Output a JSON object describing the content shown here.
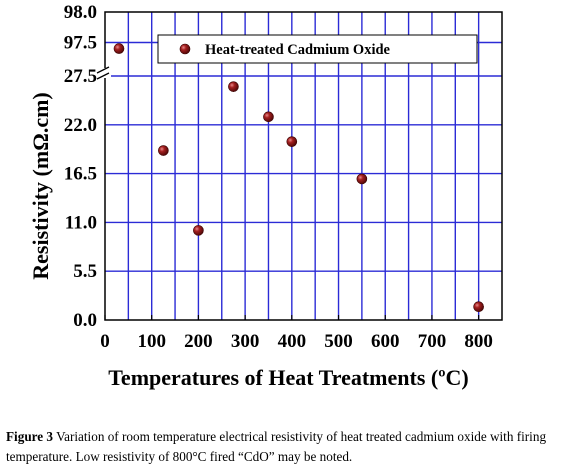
{
  "chart_data": {
    "type": "scatter",
    "xlabel": "Temperatures of Heat Treatments (ºC)",
    "ylabel": "Resistivity (mΩ.cm)",
    "xlim": [
      0,
      850
    ],
    "xticks": [
      "0",
      "100",
      "200",
      "300",
      "400",
      "500",
      "600",
      "700",
      "800"
    ],
    "yticks_lower": [
      "0.0",
      "5.5",
      "11.0",
      "16.5",
      "22.0",
      "27.5"
    ],
    "yticks_upper": [
      "97.5",
      "98.0"
    ],
    "ylim_lower": [
      0,
      27.5
    ],
    "ylim_upper": [
      97.0,
      98.0
    ],
    "axis_break": true,
    "grid": true,
    "legend_position": "top-right",
    "series": [
      {
        "name": "Heat-treated Cadmium Oxide",
        "color": "#8b1a1a",
        "points": [
          {
            "x": 30,
            "y": 97.4
          },
          {
            "x": 125,
            "y": 19.1
          },
          {
            "x": 200,
            "y": 10.1
          },
          {
            "x": 275,
            "y": 26.3
          },
          {
            "x": 350,
            "y": 22.9
          },
          {
            "x": 400,
            "y": 20.1
          },
          {
            "x": 550,
            "y": 15.9
          },
          {
            "x": 800,
            "y": 1.5
          }
        ]
      }
    ]
  },
  "caption": {
    "label": "Figure 3",
    "text": " Variation of room temperature electrical resistivity of heat treated cadmium oxide with firing temperature. Low resistivity of 800°C fired “CdO” may be noted."
  }
}
